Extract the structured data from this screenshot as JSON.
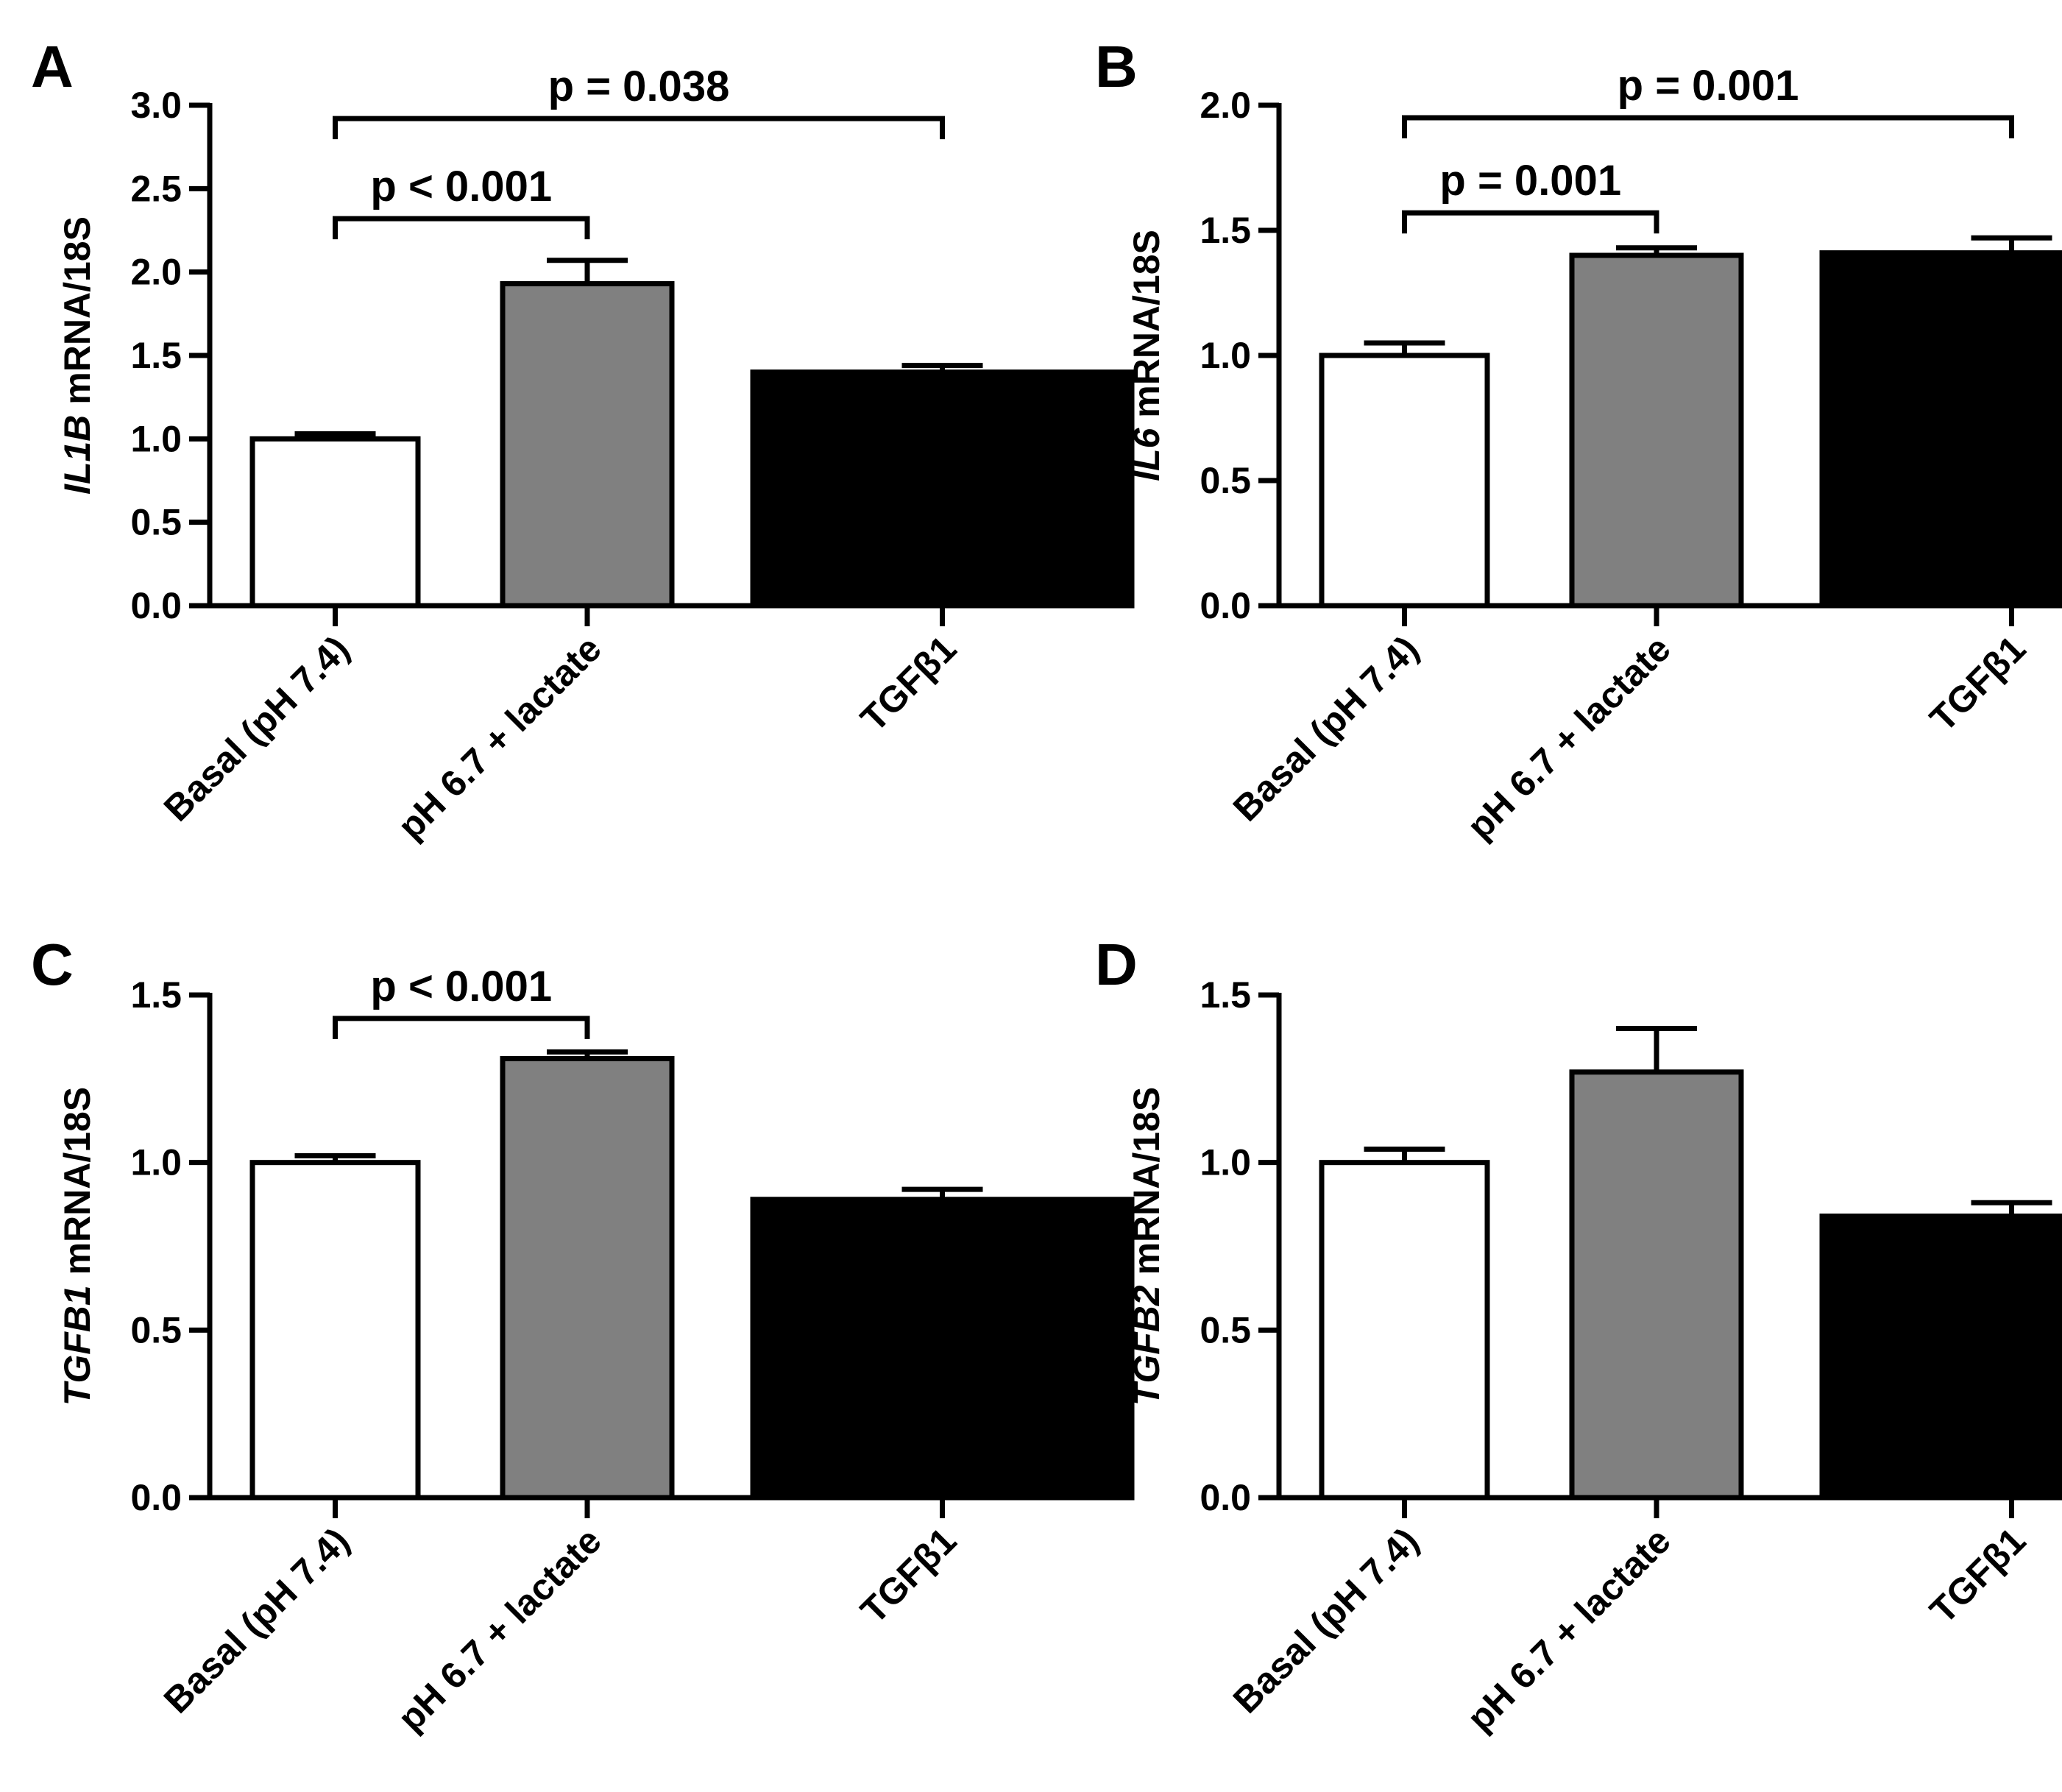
{
  "chart_data": [
    {
      "panel": "A",
      "type": "bar",
      "ylabel_gene": "IL1B",
      "ylabel_rest": " mRNA/18S",
      "categories": [
        "Basal (pH 7.4)",
        "pH 6.7 + lactate",
        "TGFβ1"
      ],
      "values": [
        1.0,
        1.93,
        1.4
      ],
      "errors": [
        0.03,
        0.14,
        0.04
      ],
      "bar_colors": [
        "#ffffff",
        "#808080",
        "#000000"
      ],
      "ylim": [
        0,
        3.0
      ],
      "yticks": [
        0.0,
        0.5,
        1.0,
        1.5,
        2.0,
        2.5,
        3.0
      ],
      "ytick_labels": [
        "0.0",
        "0.5",
        "1.0",
        "1.5",
        "2.0",
        "2.5",
        "3.0"
      ],
      "brackets": [
        {
          "from": 0,
          "to": 1,
          "y": 2.32,
          "label": "p < 0.001"
        },
        {
          "from": 0,
          "to": 2,
          "y": 2.92,
          "label": "p = 0.038"
        }
      ]
    },
    {
      "panel": "B",
      "type": "bar",
      "ylabel_gene": "IL6",
      "ylabel_rest": " mRNA/18S",
      "categories": [
        "Basal (pH 7.4)",
        "pH 6.7 + lactate",
        "TGFβ1"
      ],
      "values": [
        1.0,
        1.4,
        1.41
      ],
      "errors": [
        0.05,
        0.03,
        0.06
      ],
      "bar_colors": [
        "#ffffff",
        "#808080",
        "#000000"
      ],
      "ylim": [
        0,
        2.0
      ],
      "yticks": [
        0.0,
        0.5,
        1.0,
        1.5,
        2.0
      ],
      "ytick_labels": [
        "0.0",
        "0.5",
        "1.0",
        "1.5",
        "2.0"
      ],
      "brackets": [
        {
          "from": 0,
          "to": 1,
          "y": 1.57,
          "label": "p = 0.001"
        },
        {
          "from": 0,
          "to": 2,
          "y": 1.95,
          "label": "p = 0.001"
        }
      ]
    },
    {
      "panel": "C",
      "type": "bar",
      "ylabel_gene": "TGFB1",
      "ylabel_rest": " mRNA/18S",
      "categories": [
        "Basal (pH 7.4)",
        "pH 6.7 + lactate",
        "TGFβ1"
      ],
      "values": [
        1.0,
        1.31,
        0.89
      ],
      "errors": [
        0.02,
        0.02,
        0.03
      ],
      "bar_colors": [
        "#ffffff",
        "#808080",
        "#000000"
      ],
      "ylim": [
        0,
        1.5
      ],
      "yticks": [
        0.0,
        0.5,
        1.0,
        1.5
      ],
      "ytick_labels": [
        "0.0",
        "0.5",
        "1.0",
        "1.5"
      ],
      "brackets": [
        {
          "from": 0,
          "to": 1,
          "y": 1.43,
          "label": "p < 0.001"
        }
      ]
    },
    {
      "panel": "D",
      "type": "bar",
      "ylabel_gene": "TGFB2",
      "ylabel_rest": " mRNA/18S",
      "categories": [
        "Basal (pH 7.4)",
        "pH 6.7 + lactate",
        "TGFβ1"
      ],
      "values": [
        1.0,
        1.27,
        0.84
      ],
      "errors": [
        0.04,
        0.13,
        0.04
      ],
      "bar_colors": [
        "#ffffff",
        "#808080",
        "#000000"
      ],
      "ylim": [
        0,
        1.5
      ],
      "yticks": [
        0.0,
        0.5,
        1.0,
        1.5
      ],
      "ytick_labels": [
        "0.0",
        "0.5",
        "1.0",
        "1.5"
      ],
      "brackets": []
    }
  ]
}
